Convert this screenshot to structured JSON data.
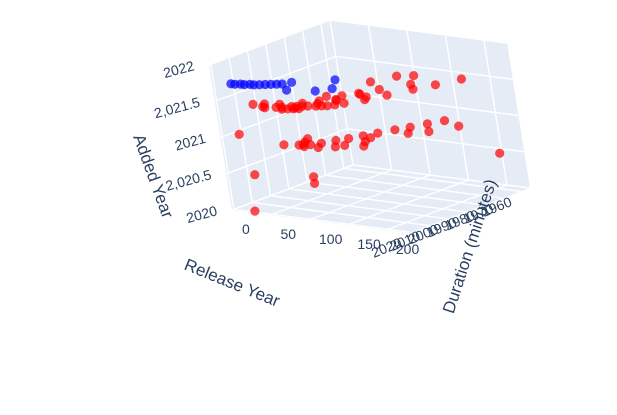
{
  "chart_data": {
    "type": "scatter3d",
    "axes": {
      "x": {
        "title": "Duration (minutes)",
        "range": [
          0,
          230
        ],
        "ticks": [
          0,
          50,
          100,
          150,
          200
        ],
        "tick_labels": [
          "0",
          "50",
          "100",
          "150",
          "200"
        ]
      },
      "y": {
        "title": "Release Year",
        "range": [
          1955,
          2021
        ],
        "ticks": [
          1960,
          1970,
          1980,
          1990,
          2000,
          2010,
          2020
        ],
        "tick_labels": [
          "1960",
          "1970",
          "1980",
          "1990",
          "2000",
          "2010",
          "2020"
        ]
      },
      "z": {
        "title": "Added Year",
        "range": [
          2020,
          2022
        ],
        "ticks": [
          2020,
          2020.5,
          2021,
          2021.5,
          2022
        ],
        "tick_labels": [
          "2020",
          "2,020.5",
          "2021",
          "2,021.5",
          "2022"
        ]
      }
    },
    "grid": true,
    "pane_color": "#e5ecf6",
    "series": [
      {
        "color": "#0000ff",
        "opacity": 0.7,
        "points": [
          [
            20,
            2019,
            2021.75
          ],
          [
            25,
            2019,
            2021.75
          ],
          [
            30,
            2018,
            2021.75
          ],
          [
            35,
            2018,
            2021.75
          ],
          [
            40,
            2017,
            2021.75
          ],
          [
            45,
            2017,
            2021.75
          ],
          [
            50,
            2016,
            2021.75
          ],
          [
            55,
            2015,
            2021.75
          ],
          [
            60,
            2014,
            2021.75
          ],
          [
            65,
            2013,
            2021.75
          ],
          [
            70,
            2012,
            2021.75
          ],
          [
            90,
            2018,
            2021.75
          ],
          [
            120,
            2015,
            2021.75
          ],
          [
            130,
            2010,
            2021.75
          ],
          [
            110,
            2000,
            2021.75
          ],
          [
            75,
            2009,
            2021.75
          ]
        ]
      },
      {
        "color": "#ff0000",
        "opacity": 0.7,
        "points": [
          [
            85,
            2020,
            2021.5
          ],
          [
            90,
            2019,
            2021.5
          ],
          [
            95,
            2018,
            2021.5
          ],
          [
            100,
            2017,
            2021.5
          ],
          [
            88,
            2016,
            2021.5
          ],
          [
            92,
            2015,
            2021.5
          ],
          [
            97,
            2014,
            2021.5
          ],
          [
            102,
            2013,
            2021.5
          ],
          [
            110,
            2012,
            2021.5
          ],
          [
            115,
            2011,
            2021.5
          ],
          [
            120,
            2010,
            2021.5
          ],
          [
            80,
            2018,
            2021.5
          ],
          [
            75,
            2019,
            2021.5
          ],
          [
            105,
            2009,
            2021.5
          ],
          [
            125,
            2008,
            2021.5
          ],
          [
            130,
            2005,
            2021.5
          ],
          [
            112,
            2002,
            2021.5
          ],
          [
            95,
            2000,
            2021.5
          ],
          [
            140,
            1998,
            2021.5
          ],
          [
            135,
            1995,
            2021.5
          ],
          [
            118,
            1992,
            2021.5
          ],
          [
            150,
            1990,
            2021.5
          ],
          [
            128,
            1985,
            2021.5
          ],
          [
            160,
            1980,
            2021.5
          ],
          [
            100,
            1978,
            2021.5
          ],
          [
            145,
            1975,
            2021.5
          ],
          [
            170,
            1972,
            2021.5
          ],
          [
            110,
            1968,
            2021.5
          ],
          [
            125,
            1965,
            2021.5
          ],
          [
            180,
            1962,
            2021.5
          ],
          [
            60,
            2020,
            2021.5
          ],
          [
            65,
            2021,
            2021.5
          ],
          [
            55,
            2017,
            2021.5
          ],
          [
            70,
            2015,
            2021.5
          ],
          [
            45,
            2019,
            2021.5
          ],
          [
            90,
            2011,
            2021.5
          ],
          [
            100,
            2006,
            2021.5
          ],
          [
            115,
            2003,
            2021.5
          ],
          [
            108,
            1997,
            2021.5
          ],
          [
            122,
            1993,
            2021.5
          ],
          [
            87,
            2010,
            2021
          ],
          [
            93,
            2014,
            2021
          ],
          [
            98,
            2017,
            2021
          ],
          [
            104,
            2019,
            2021
          ],
          [
            112,
            2013,
            2021
          ],
          [
            119,
            2008,
            2021
          ],
          [
            126,
            2004,
            2021
          ],
          [
            133,
            1999,
            2021
          ],
          [
            140,
            1994,
            2021
          ],
          [
            148,
            1988,
            2021
          ],
          [
            156,
            1983,
            2021
          ],
          [
            164,
            1977,
            2021
          ],
          [
            172,
            1971,
            2021
          ],
          [
            105,
            2016,
            2021
          ],
          [
            95,
            2018,
            2021
          ],
          [
            80,
            2020,
            2021
          ],
          [
            10,
            2015,
            2021
          ],
          [
            140,
            2012,
            2021
          ],
          [
            160,
            2010,
            2021
          ],
          [
            120,
            2018,
            2021
          ],
          [
            135,
            2015,
            2021
          ],
          [
            150,
            2005,
            2021
          ],
          [
            145,
            2000,
            2021
          ],
          [
            170,
            1990,
            2021
          ],
          [
            185,
            1985,
            2021
          ],
          [
            200,
            1975,
            2021
          ],
          [
            92,
            2012,
            2020.5
          ],
          [
            210,
            1960,
            2020.5
          ],
          [
            110,
            2019,
            2020.5
          ],
          [
            30,
            2018,
            2020.5
          ],
          [
            25,
            2019,
            2020
          ],
          [
            95,
            2017,
            2021.5
          ]
        ]
      }
    ]
  }
}
